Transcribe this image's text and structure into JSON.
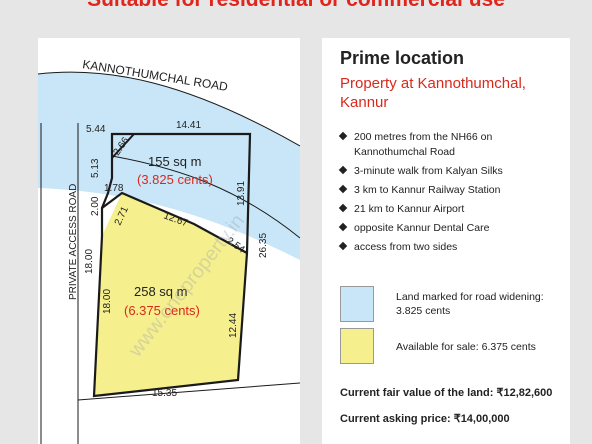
{
  "headline": "Suitable for residential or commercial use",
  "plan": {
    "road_label": "KANNOTHUMCHAL ROAD",
    "access_road_label": "PRIVATE ACCESS ROAD",
    "upper_area": "155 sq m",
    "upper_cents": "(3.825 cents)",
    "lower_area": "258 sq m",
    "lower_cents": "(6.375 cents)",
    "dimensions": [
      "5.44",
      "2.66",
      "14.41",
      "5.13",
      "1.78",
      "2.00",
      "2.71",
      "12.67",
      "13.91",
      "2.54",
      "26.35",
      "18.00",
      "18.00",
      "12.44",
      "15.35"
    ],
    "watermark": "www.oneproperty.in",
    "colors": {
      "road_blue": "#c8e6f7",
      "sale_yellow": "#f6ef8e",
      "outline": "#1a1a1a"
    }
  },
  "info": {
    "title": "Prime location",
    "subtitle": "Property at Kannothumchal, Kannur",
    "bullets": [
      "200 metres from the NH66 on Kannothumchal Road",
      "3-minute walk from Kalyan Silks",
      "3 km to Kannur Railway Station",
      "21 km to Kannur Airport",
      "opposite Kannur Dental Care",
      "access from two sides"
    ],
    "legend": [
      {
        "label": "Land marked for road widening: 3.825 cents",
        "color": "#c8e6f7"
      },
      {
        "label": "Available for sale: 6.375 cents",
        "color": "#f6ef8e"
      }
    ],
    "fair_value": "Current fair value of the land: ₹12,82,600",
    "asking_price": "Current asking price: ₹14,00,000",
    "accent_color": "#d9291c"
  }
}
